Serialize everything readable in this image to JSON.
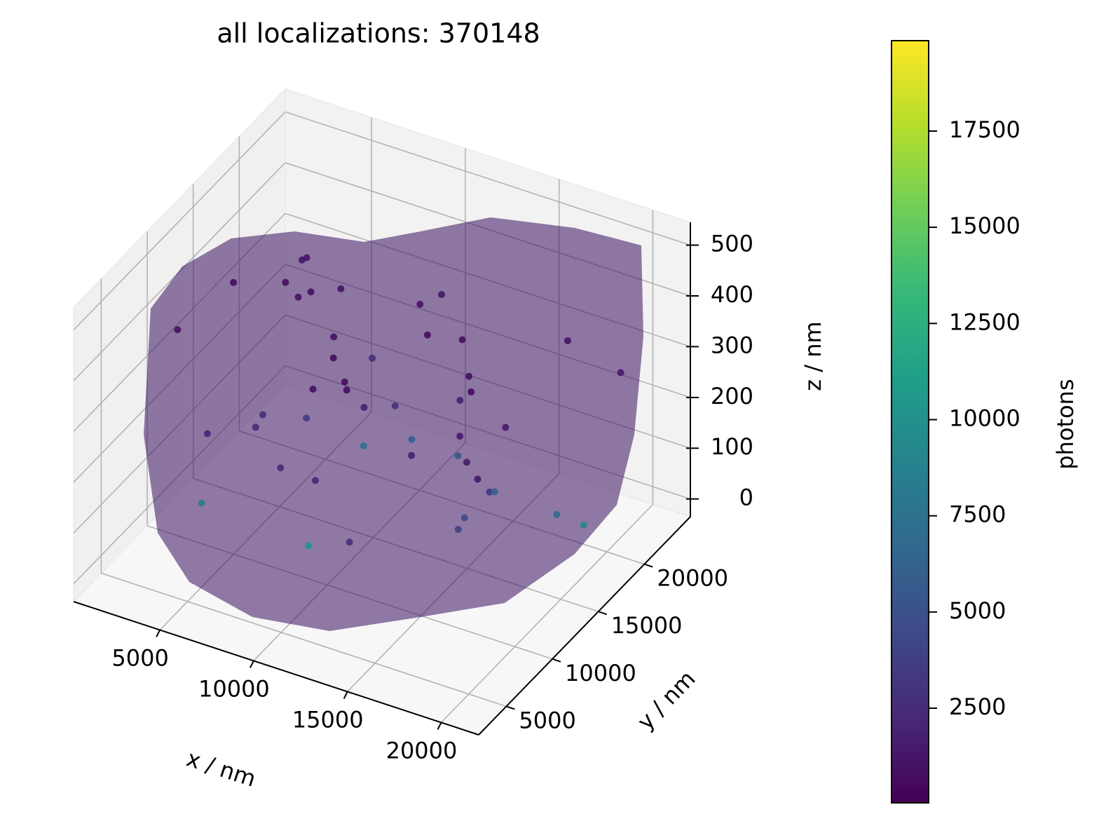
{
  "chart_data": {
    "type": "scatter3d",
    "title": "all localizations: 370148",
    "xlabel": "x / nm",
    "ylabel": "y / nm",
    "zlabel": "z / nm",
    "colorbar_label": "photons",
    "x": [
      3000,
      5200,
      7400,
      9600,
      11800,
      14000,
      16200,
      18400,
      4100,
      6300,
      8500,
      10700,
      12900,
      15100,
      17300,
      19500,
      3500,
      5700,
      7900,
      10100,
      12300,
      14500,
      16700,
      18900,
      4600,
      6800,
      9000,
      11200,
      13400,
      15600,
      17800,
      20000,
      2800,
      6000,
      9200,
      12400,
      15600,
      18800,
      4000,
      8000,
      12000,
      16000,
      5000,
      10000,
      15000,
      19000,
      7000,
      13000
    ],
    "y": [
      8000,
      12000,
      16000,
      20000,
      7000,
      11000,
      15000,
      19000,
      9000,
      13000,
      17000,
      21000,
      6500,
      10500,
      14500,
      18500,
      20500,
      16500,
      12500,
      8500,
      19500,
      15500,
      11500,
      7500,
      14000,
      18000,
      10000,
      6000,
      17500,
      13500,
      9500,
      21500,
      11000,
      15000,
      19000,
      7000,
      13000,
      17000,
      20000,
      9000,
      16000,
      12000,
      10000,
      14000,
      18000,
      8000,
      21000,
      6000
    ],
    "z": [
      420,
      180,
      310,
      60,
      490,
      250,
      130,
      380,
      210,
      460,
      90,
      340,
      150,
      510,
      280,
      40,
      330,
      120,
      470,
      200,
      70,
      400,
      260,
      500,
      160,
      360,
      30,
      440,
      230,
      100,
      480,
      290,
      20,
      390,
      140,
      450,
      270,
      80,
      350,
      190,
      430,
      110,
      500,
      240,
      60,
      320,
      170,
      460
    ],
    "color_values": [
      900,
      2400,
      1100,
      6200,
      700,
      1600,
      3100,
      1000,
      2000,
      800,
      7400,
      1200,
      2600,
      600,
      1400,
      9100,
      1300,
      3500,
      750,
      2100,
      5600,
      950,
      1500,
      650,
      2800,
      1150,
      10400,
      850,
      1800,
      4300,
      700,
      1350,
      8200,
      1000,
      3000,
      800,
      1450,
      6800,
      1200,
      2300,
      900,
      3900,
      620,
      1700,
      5900,
      1250,
      2500,
      780
    ],
    "xlim": [
      400,
      22000
    ],
    "ylim": [
      2000,
      25000
    ],
    "zlim": [
      -35,
      545
    ],
    "clim": [
      40,
      19850
    ],
    "xticks": [
      5000,
      10000,
      15000,
      20000
    ],
    "yticks": [
      5000,
      10000,
      15000,
      20000
    ],
    "zticks": [
      0,
      100,
      200,
      300,
      400,
      500
    ],
    "cticks": [
      2500,
      5000,
      7500,
      10000,
      12500,
      15000,
      17500
    ],
    "colormap": [
      "#440154",
      "#482878",
      "#3e4989",
      "#31688e",
      "#26828e",
      "#1f9e89",
      "#35b779",
      "#6ece58",
      "#b5de2b",
      "#fde725"
    ],
    "grid": true
  }
}
